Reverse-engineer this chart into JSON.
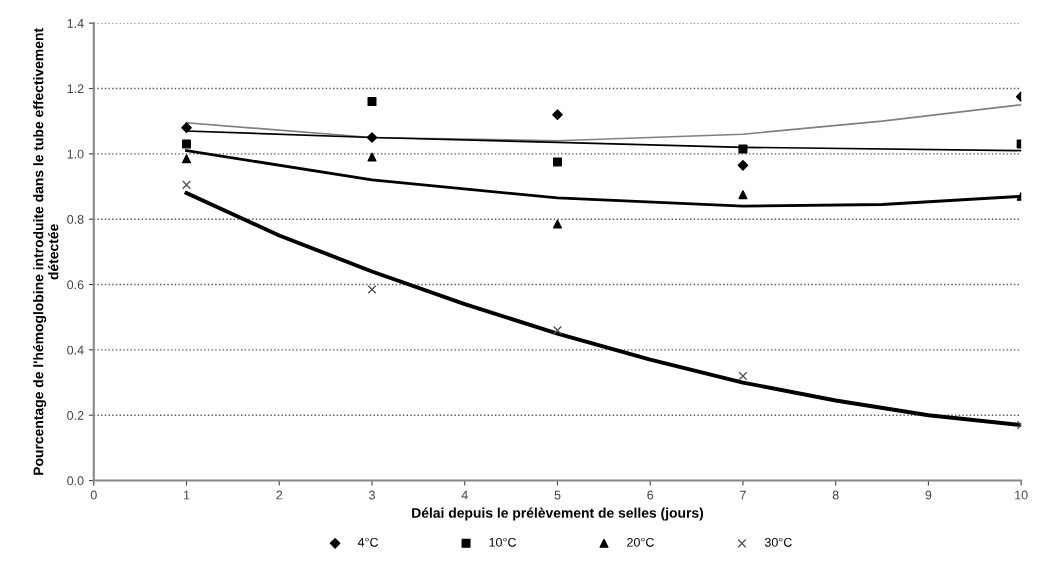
{
  "chart_data": {
    "type": "scatter",
    "xlabel": "Délai depuis le prélèvement de selles (jours)",
    "ylabel": "Pourcentage de l'hémoglobine introduite dans le tube effectivement détectée",
    "x": [
      1,
      3,
      5,
      7,
      10
    ],
    "series": [
      {
        "name": "4°C",
        "color": "#000000",
        "marker": "diamond",
        "values": [
          1.08,
          1.05,
          1.12,
          0.965,
          1.175
        ]
      },
      {
        "name": "10°C",
        "color": "#000000",
        "marker": "square",
        "values": [
          1.03,
          1.16,
          0.975,
          1.015,
          1.03
        ]
      },
      {
        "name": "20°C",
        "color": "#000000",
        "marker": "triangle",
        "values": [
          0.985,
          0.99,
          0.785,
          0.875,
          0.87
        ]
      },
      {
        "name": "30°C",
        "color": "#555555",
        "marker": "cross",
        "values": [
          0.905,
          0.585,
          0.46,
          0.32,
          0.17
        ]
      },
      {
        "type": "line",
        "color": "#808080",
        "x": [
          1,
          3,
          5,
          7,
          8.5,
          10
        ],
        "values": [
          1.095,
          1.05,
          1.04,
          1.06,
          1.1,
          1.15
        ]
      },
      {
        "type": "line",
        "color": "#000000",
        "x": [
          1,
          3,
          5,
          7,
          10
        ],
        "values": [
          1.07,
          1.05,
          1.035,
          1.02,
          1.01
        ]
      },
      {
        "type": "line",
        "color": "#000000",
        "x": [
          1,
          3,
          5,
          7,
          8.5,
          10
        ],
        "values": [
          1.01,
          0.92,
          0.865,
          0.84,
          0.845,
          0.87
        ]
      },
      {
        "type": "line",
        "color": "#000000",
        "x": [
          1,
          2,
          3,
          4,
          5,
          6,
          7,
          8,
          9,
          10
        ],
        "values": [
          0.88,
          0.75,
          0.64,
          0.54,
          0.45,
          0.37,
          0.3,
          0.245,
          0.2,
          0.17
        ]
      }
    ],
    "xlim": [
      0,
      10
    ],
    "xticks": [
      0,
      1,
      2,
      3,
      4,
      5,
      6,
      7,
      8,
      9,
      10
    ],
    "ylim": [
      0,
      1.4
    ],
    "yticks": [
      {
        "value": 0,
        "label": "0.0"
      },
      {
        "value": 0.2,
        "label": "0.2"
      },
      {
        "value": 0.4,
        "label": "0.4"
      },
      {
        "value": 0.6,
        "label": "0.6"
      },
      {
        "value": 0.8,
        "label": "0.8"
      },
      {
        "value": 1.0,
        "label": "1.0"
      },
      {
        "value": 1.2,
        "label": "1.2"
      },
      {
        "value": 1.4,
        "label": "1.4"
      }
    ],
    "grid": "y",
    "legend": "bottom"
  }
}
